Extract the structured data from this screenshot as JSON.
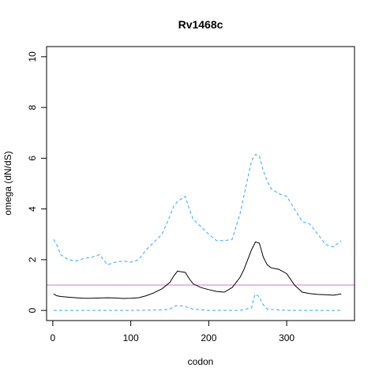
{
  "chart_data": {
    "type": "line",
    "title": "Rv1468c",
    "xlabel": "codon",
    "ylabel": "omega (dN/dS)",
    "xlim": [
      -8,
      387
    ],
    "ylim": [
      -0.4,
      10.4
    ],
    "x_ticks": [
      0,
      100,
      200,
      300
    ],
    "y_ticks": [
      0,
      2,
      4,
      6,
      8,
      10
    ],
    "grid": false,
    "legend": "none",
    "reference_line": {
      "y": 1,
      "color": "#cc79c8"
    },
    "series": [
      {
        "style": "solid",
        "color": "#000000",
        "x": [
          1,
          5,
          10,
          20,
          30,
          40,
          50,
          60,
          70,
          80,
          90,
          100,
          110,
          120,
          130,
          140,
          150,
          155,
          160,
          165,
          170,
          175,
          180,
          190,
          200,
          210,
          220,
          230,
          240,
          245,
          250,
          255,
          260,
          265,
          270,
          275,
          280,
          290,
          300,
          310,
          320,
          330,
          340,
          350,
          360,
          370
        ],
        "y": [
          0.65,
          0.58,
          0.55,
          0.52,
          0.5,
          0.48,
          0.48,
          0.49,
          0.5,
          0.49,
          0.47,
          0.48,
          0.5,
          0.58,
          0.7,
          0.85,
          1.1,
          1.35,
          1.55,
          1.52,
          1.5,
          1.25,
          1.05,
          0.9,
          0.82,
          0.75,
          0.72,
          0.9,
          1.3,
          1.6,
          2.0,
          2.4,
          2.7,
          2.65,
          2.1,
          1.8,
          1.68,
          1.62,
          1.45,
          1.0,
          0.72,
          0.66,
          0.63,
          0.62,
          0.6,
          0.65
        ]
      },
      {
        "style": "dashed",
        "color": "#3aa8e8",
        "x": [
          1,
          5,
          10,
          20,
          30,
          40,
          50,
          60,
          70,
          80,
          90,
          100,
          110,
          120,
          130,
          140,
          150,
          155,
          160,
          165,
          170,
          175,
          180,
          190,
          200,
          210,
          220,
          230,
          240,
          245,
          250,
          255,
          260,
          265,
          270,
          275,
          280,
          290,
          300,
          310,
          320,
          330,
          340,
          350,
          360,
          370
        ],
        "y": [
          2.8,
          2.6,
          2.2,
          2.0,
          1.95,
          2.05,
          2.1,
          2.2,
          1.8,
          1.9,
          1.95,
          1.9,
          2.0,
          2.4,
          2.7,
          3.0,
          3.7,
          4.1,
          4.3,
          4.4,
          4.5,
          4.0,
          3.6,
          3.3,
          3.0,
          2.75,
          2.75,
          2.8,
          3.8,
          4.5,
          5.2,
          5.9,
          6.15,
          6.1,
          5.5,
          5.1,
          4.8,
          4.6,
          4.5,
          4.0,
          3.5,
          3.4,
          3.0,
          2.6,
          2.5,
          2.75
        ]
      },
      {
        "style": "dashed",
        "color": "#3aa8e8",
        "x": [
          1,
          50,
          100,
          140,
          150,
          155,
          160,
          165,
          170,
          175,
          180,
          200,
          240,
          255,
          258,
          260,
          262,
          264,
          266,
          268,
          275,
          300,
          370
        ],
        "y": [
          0.0,
          0.0,
          0.0,
          0.02,
          0.05,
          0.15,
          0.2,
          0.18,
          0.15,
          0.1,
          0.05,
          0.0,
          0.0,
          0.1,
          0.5,
          0.65,
          0.6,
          0.55,
          0.5,
          0.3,
          0.05,
          0.0,
          0.0
        ]
      }
    ]
  }
}
